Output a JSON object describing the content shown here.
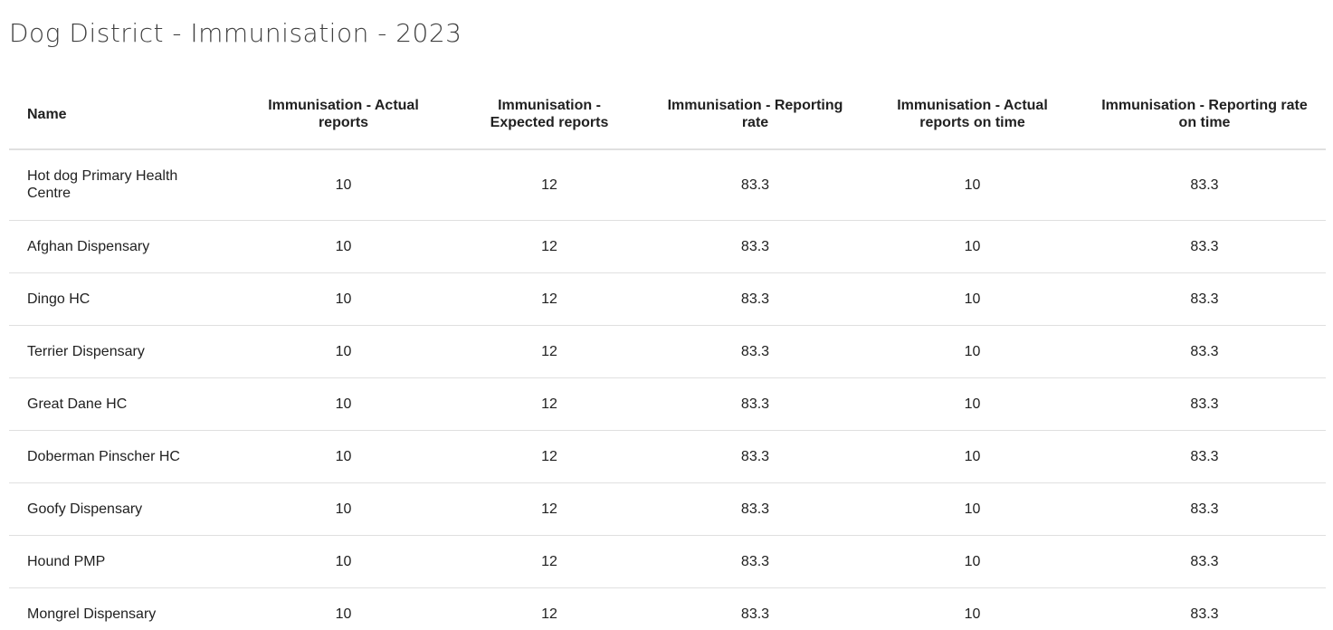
{
  "title": "Dog District - Immunisation - 2023",
  "table": {
    "columns": [
      "Name",
      "Immunisation - Actual reports",
      "Immunisation - Expected reports",
      "Immunisation - Reporting rate",
      "Immunisation - Actual reports on time",
      "Immunisation - Reporting rate on time"
    ],
    "rows": [
      {
        "name": "Hot dog Primary Health Centre",
        "actual": "10",
        "expected": "12",
        "rate": "83.3",
        "actual_on_time": "10",
        "rate_on_time": "83.3"
      },
      {
        "name": "Afghan Dispensary",
        "actual": "10",
        "expected": "12",
        "rate": "83.3",
        "actual_on_time": "10",
        "rate_on_time": "83.3"
      },
      {
        "name": "Dingo HC",
        "actual": "10",
        "expected": "12",
        "rate": "83.3",
        "actual_on_time": "10",
        "rate_on_time": "83.3"
      },
      {
        "name": "Terrier Dispensary",
        "actual": "10",
        "expected": "12",
        "rate": "83.3",
        "actual_on_time": "10",
        "rate_on_time": "83.3"
      },
      {
        "name": "Great Dane HC",
        "actual": "10",
        "expected": "12",
        "rate": "83.3",
        "actual_on_time": "10",
        "rate_on_time": "83.3"
      },
      {
        "name": "Doberman Pinscher HC",
        "actual": "10",
        "expected": "12",
        "rate": "83.3",
        "actual_on_time": "10",
        "rate_on_time": "83.3"
      },
      {
        "name": "Goofy Dispensary",
        "actual": "10",
        "expected": "12",
        "rate": "83.3",
        "actual_on_time": "10",
        "rate_on_time": "83.3"
      },
      {
        "name": "Hound PMP",
        "actual": "10",
        "expected": "12",
        "rate": "83.3",
        "actual_on_time": "10",
        "rate_on_time": "83.3"
      },
      {
        "name": "Mongrel Dispensary",
        "actual": "10",
        "expected": "12",
        "rate": "83.3",
        "actual_on_time": "10",
        "rate_on_time": "83.3"
      }
    ]
  }
}
